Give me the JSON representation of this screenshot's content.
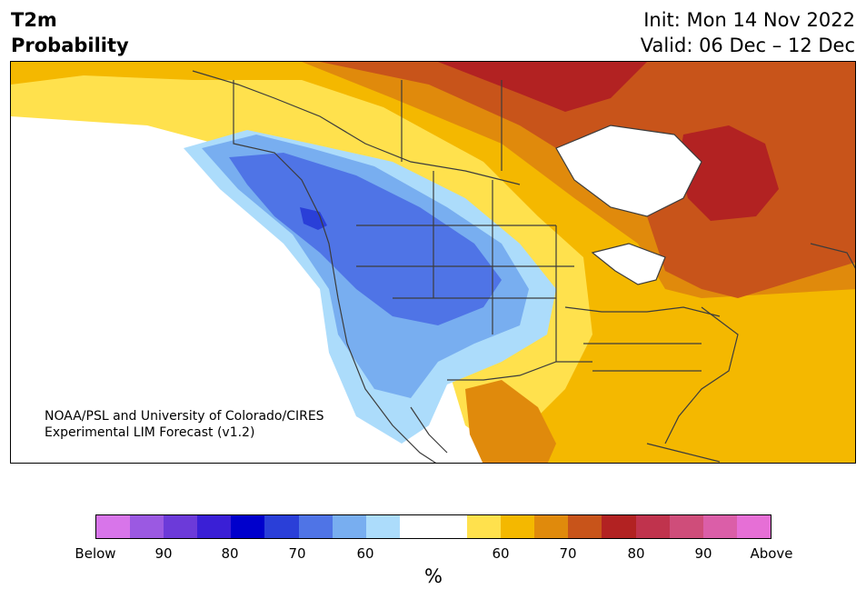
{
  "header": {
    "variable": "T2m",
    "metric": "Probability",
    "init": "Init: Mon 14 Nov 2022",
    "valid": "Valid: 06 Dec – 12 Dec"
  },
  "credit": {
    "line1": "NOAA/PSL and University of Colorado/CIRES",
    "line2": "Experimental LIM Forecast (v1.2)"
  },
  "colorbar": {
    "unit": "%",
    "colors": [
      "#d875ea",
      "#9b59e2",
      "#6c3ad9",
      "#3a1fd6",
      "#0000cc",
      "#2a3fd8",
      "#4f74e6",
      "#78aef0",
      "#acdcfb",
      "#ffffff",
      "#ffffff",
      "#ffe14d",
      "#f4b800",
      "#e08a0c",
      "#c8541a",
      "#b22222",
      "#c0334d",
      "#cf4d7a",
      "#db5ea8",
      "#e66fd6"
    ],
    "tick_labels": [
      "Below",
      "90",
      "80",
      "70",
      "60",
      "60",
      "70",
      "80",
      "90",
      "Above"
    ]
  },
  "map_layers": {
    "white": "#ffffff",
    "lightyellow": "#ffe14d",
    "yellow": "#f4b800",
    "orange": "#e08a0c",
    "darkorange": "#c8541a",
    "red": "#b22222",
    "lightblue": "#acdcfb",
    "blue": "#78aef0",
    "medblue": "#4f74e6",
    "darkblue": "#2a3fd8",
    "coast": "#3c3c3c"
  }
}
